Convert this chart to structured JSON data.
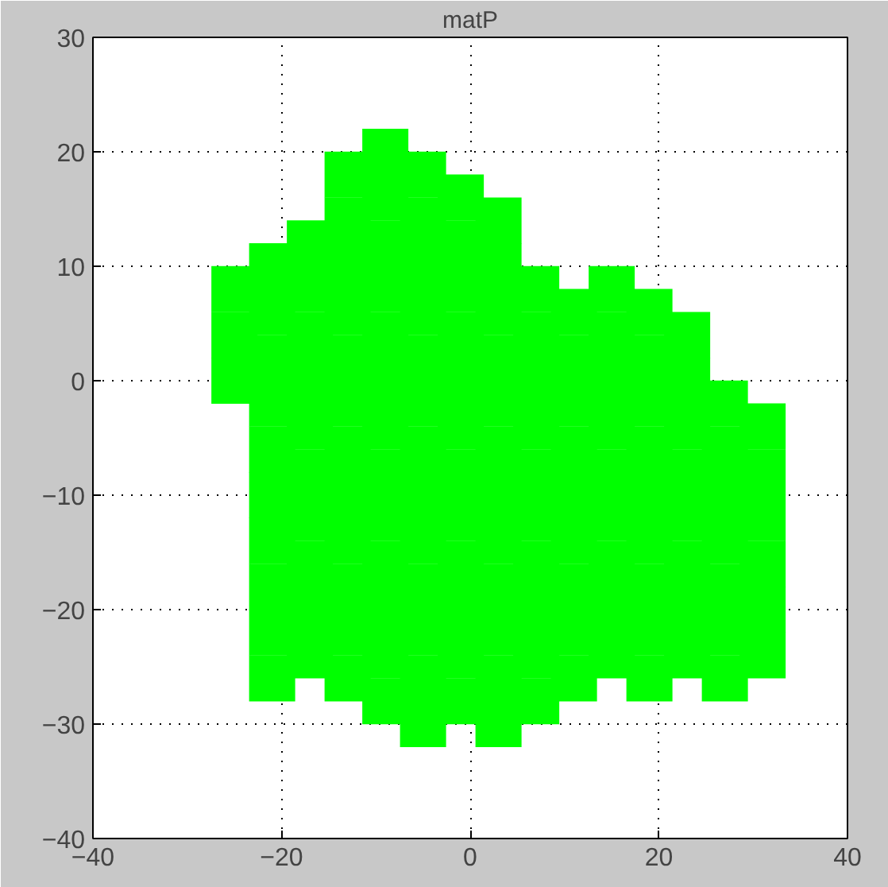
{
  "chart_data": {
    "type": "scatter",
    "title": "matP",
    "marker": "square",
    "grid": true,
    "xlim": [
      -40,
      40
    ],
    "ylim": [
      -40,
      30
    ],
    "xticks": [
      -40,
      -20,
      0,
      20,
      40
    ],
    "yticks": [
      -40,
      -30,
      -20,
      -10,
      0,
      10,
      20,
      30
    ],
    "series": [
      {
        "color": "#00ff00",
        "x": [
          -25,
          -25,
          -25,
          -21,
          -21,
          -21,
          -21,
          -21,
          -21,
          -21,
          -21,
          -21,
          -21,
          -17,
          -17,
          -17,
          -17,
          -17,
          -17,
          -17,
          -17,
          -17,
          -17,
          -13,
          -13,
          -13,
          -13,
          -13,
          -13,
          -13,
          -13,
          -13,
          -13,
          -13,
          -13,
          -9,
          -9,
          -9,
          -9,
          -9,
          -9,
          -9,
          -9,
          -9,
          -9,
          -9,
          -9,
          -9,
          -5,
          -5,
          -5,
          -5,
          -5,
          -5,
          -5,
          -5,
          -5,
          -5,
          -5,
          -5,
          -5,
          -1,
          -1,
          -1,
          -1,
          -1,
          -1,
          -1,
          -1,
          -1,
          -1,
          -1,
          -1,
          3,
          3,
          3,
          3,
          3,
          3,
          3,
          3,
          3,
          3,
          3,
          3,
          7,
          7,
          7,
          7,
          7,
          7,
          7,
          7,
          7,
          7,
          11,
          11,
          11,
          11,
          11,
          11,
          11,
          11,
          11,
          15,
          15,
          15,
          15,
          15,
          15,
          15,
          15,
          15,
          19,
          19,
          19,
          19,
          19,
          19,
          19,
          19,
          19,
          23,
          23,
          23,
          23,
          23,
          23,
          23,
          23,
          27,
          27,
          27,
          27,
          27,
          27,
          27,
          31,
          31,
          31,
          31,
          31,
          31
        ],
        "values": [
          0,
          4,
          8,
          -26,
          -22,
          -18,
          -14,
          -10,
          -6,
          -2,
          2,
          6,
          10,
          -24,
          -20,
          -16,
          -12,
          -8,
          -4,
          0,
          4,
          8,
          12,
          -26,
          -22,
          -18,
          -14,
          -10,
          -6,
          -2,
          2,
          6,
          10,
          14,
          18,
          -28,
          -24,
          -20,
          -16,
          -12,
          -8,
          -4,
          0,
          4,
          8,
          12,
          16,
          20,
          -30,
          -26,
          -22,
          -18,
          -14,
          -10,
          -6,
          -2,
          2,
          6,
          10,
          14,
          18,
          -28,
          -24,
          -20,
          -16,
          -12,
          -8,
          -4,
          0,
          4,
          8,
          12,
          16,
          -30,
          -26,
          -22,
          -18,
          -14,
          -10,
          -6,
          -2,
          2,
          6,
          10,
          14,
          -28,
          -24,
          -20,
          -16,
          -12,
          -8,
          -4,
          0,
          4,
          8,
          -26,
          -22,
          -18,
          -14,
          -10,
          -6,
          -2,
          2,
          6,
          -24,
          -20,
          -16,
          -12,
          -8,
          -4,
          0,
          4,
          8,
          -26,
          -22,
          -18,
          -14,
          -10,
          -6,
          -2,
          2,
          6,
          -24,
          -20,
          -16,
          -12,
          -8,
          -4,
          0,
          4,
          -26,
          -22,
          -18,
          -14,
          -10,
          -6,
          -2,
          -24,
          -20,
          -16,
          -12,
          -8,
          -4
        ]
      }
    ]
  }
}
